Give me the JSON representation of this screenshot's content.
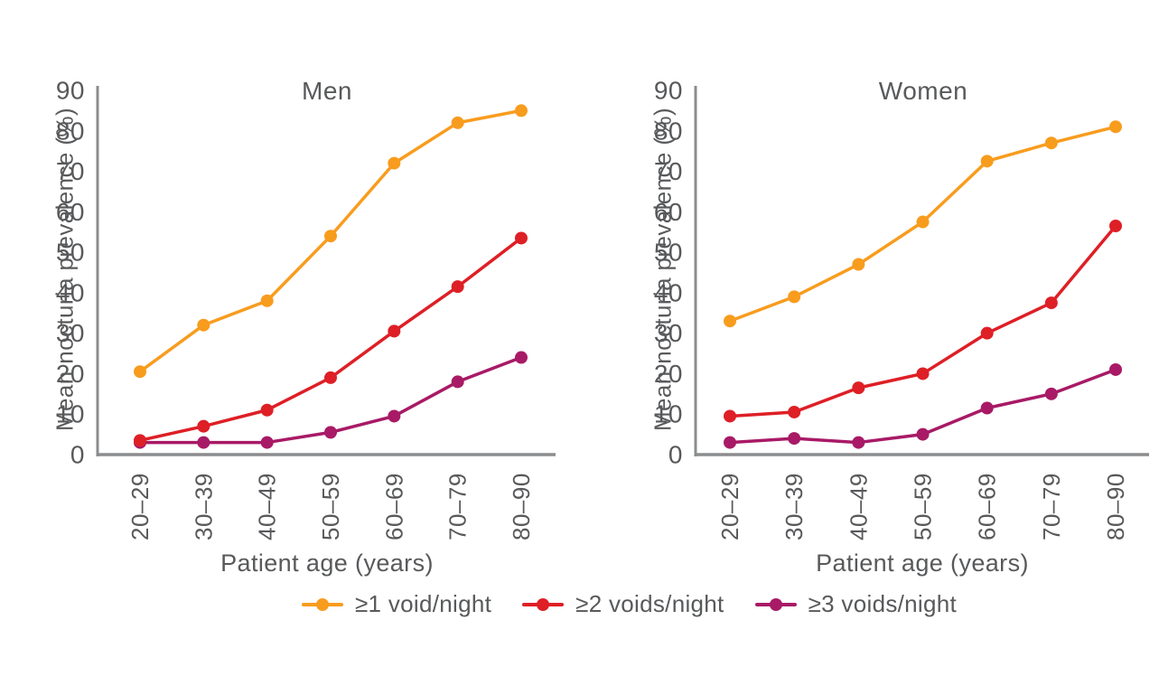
{
  "figure": {
    "background": "#ffffff",
    "text_color": "#58595B",
    "axis_color": "#8A8C8E"
  },
  "legend": {
    "items": [
      {
        "label": "≥1 void/night",
        "color": "#F89C1E"
      },
      {
        "label": "≥2 voids/night",
        "color": "#DE1F26"
      },
      {
        "label": "≥3 voids/night",
        "color": "#A81A66"
      }
    ]
  },
  "chart_data": [
    {
      "type": "line",
      "title": "Men",
      "xlabel": "Patient age (years)",
      "ylabel": "Mean nocturia prevalence (%)",
      "categories": [
        "20–29",
        "30–39",
        "40–49",
        "50–59",
        "60–69",
        "70–79",
        "80–90"
      ],
      "ylim": [
        0,
        90
      ],
      "yticks": [
        0,
        10,
        20,
        30,
        40,
        50,
        60,
        70,
        80,
        90
      ],
      "grid": false,
      "legend_position": "bottom",
      "series": [
        {
          "name": "≥1 void/night",
          "color": "#F89C1E",
          "values": [
            20.5,
            32,
            38,
            54,
            72,
            82,
            85
          ]
        },
        {
          "name": "≥2 voids/night",
          "color": "#DE1F26",
          "values": [
            3.5,
            7,
            11,
            19,
            30.5,
            41.5,
            53.5
          ]
        },
        {
          "name": "≥3 voids/night",
          "color": "#A81A66",
          "values": [
            3,
            3,
            3,
            5.5,
            9.5,
            18,
            24
          ]
        }
      ]
    },
    {
      "type": "line",
      "title": "Women",
      "xlabel": "Patient age (years)",
      "ylabel": "Mean nocturia prevalence (%)",
      "categories": [
        "20–29",
        "30–39",
        "40–49",
        "50–59",
        "60–69",
        "70–79",
        "80–90"
      ],
      "ylim": [
        0,
        90
      ],
      "yticks": [
        0,
        10,
        20,
        30,
        40,
        50,
        60,
        70,
        80,
        90
      ],
      "grid": false,
      "legend_position": "bottom",
      "series": [
        {
          "name": "≥1 void/night",
          "color": "#F89C1E",
          "values": [
            33,
            39,
            47,
            57.5,
            72.5,
            77,
            81
          ]
        },
        {
          "name": "≥2 voids/night",
          "color": "#DE1F26",
          "values": [
            9.5,
            10.5,
            16.5,
            20,
            30,
            37.5,
            56.5
          ]
        },
        {
          "name": "≥3 voids/night",
          "color": "#A81A66",
          "values": [
            3,
            4,
            3,
            5,
            11.5,
            15,
            21
          ]
        }
      ]
    }
  ]
}
